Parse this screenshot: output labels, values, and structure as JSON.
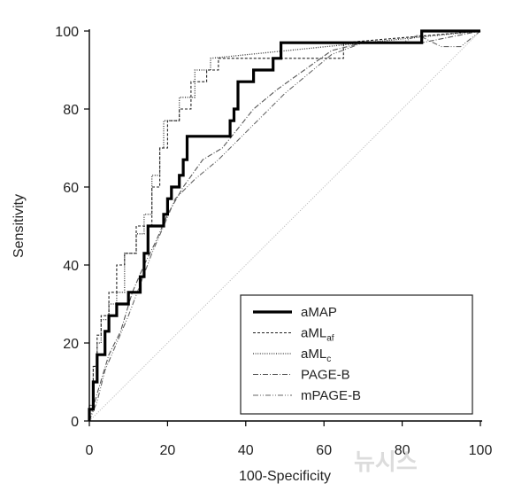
{
  "chart_data": {
    "type": "line",
    "xlabel": "100-Specificity",
    "ylabel": "Sensitivity",
    "xlim": [
      0,
      100
    ],
    "ylim": [
      0,
      100
    ],
    "xticks": [
      0,
      20,
      40,
      60,
      80,
      100
    ],
    "yticks": [
      0,
      20,
      40,
      60,
      80,
      100
    ],
    "grid": false,
    "legend_position": "bottom-right",
    "reference_line": [
      [
        0,
        0
      ],
      [
        100,
        100
      ]
    ],
    "series": [
      {
        "name": "aMAP",
        "name_main": "aMAP",
        "name_sub": "",
        "style": "solid-thick",
        "color": "#000000",
        "points": [
          [
            0,
            0
          ],
          [
            0,
            3
          ],
          [
            1,
            3
          ],
          [
            1,
            10
          ],
          [
            2,
            10
          ],
          [
            2,
            17
          ],
          [
            4,
            17
          ],
          [
            4,
            23
          ],
          [
            5,
            23
          ],
          [
            5,
            27
          ],
          [
            7,
            27
          ],
          [
            7,
            30
          ],
          [
            10,
            30
          ],
          [
            10,
            33
          ],
          [
            13,
            33
          ],
          [
            13,
            37
          ],
          [
            14,
            37
          ],
          [
            14,
            43
          ],
          [
            15,
            43
          ],
          [
            15,
            50
          ],
          [
            19,
            50
          ],
          [
            19,
            53
          ],
          [
            20,
            53
          ],
          [
            20,
            57
          ],
          [
            21,
            57
          ],
          [
            21,
            60
          ],
          [
            23,
            60
          ],
          [
            23,
            63
          ],
          [
            24,
            63
          ],
          [
            24,
            67
          ],
          [
            25,
            67
          ],
          [
            25,
            73
          ],
          [
            36,
            73
          ],
          [
            36,
            77
          ],
          [
            37,
            77
          ],
          [
            37,
            80
          ],
          [
            38,
            80
          ],
          [
            38,
            87
          ],
          [
            42,
            87
          ],
          [
            42,
            90
          ],
          [
            47,
            90
          ],
          [
            47,
            93
          ],
          [
            49,
            93
          ],
          [
            49,
            97
          ],
          [
            85,
            97
          ],
          [
            85,
            100
          ],
          [
            100,
            100
          ]
        ]
      },
      {
        "name": "aMLaf",
        "name_main": "aML",
        "name_sub": "af",
        "style": "dashed",
        "color": "#222222",
        "points": [
          [
            0,
            0
          ],
          [
            0,
            4
          ],
          [
            1,
            4
          ],
          [
            1,
            14
          ],
          [
            2,
            14
          ],
          [
            2,
            22
          ],
          [
            3,
            22
          ],
          [
            3,
            27
          ],
          [
            5,
            27
          ],
          [
            5,
            33
          ],
          [
            7,
            33
          ],
          [
            7,
            40
          ],
          [
            9,
            40
          ],
          [
            9,
            43
          ],
          [
            12,
            43
          ],
          [
            12,
            50
          ],
          [
            16,
            50
          ],
          [
            16,
            60
          ],
          [
            18,
            60
          ],
          [
            18,
            70
          ],
          [
            20,
            70
          ],
          [
            20,
            77
          ],
          [
            23,
            77
          ],
          [
            23,
            80
          ],
          [
            26,
            80
          ],
          [
            26,
            87
          ],
          [
            30,
            87
          ],
          [
            30,
            90
          ],
          [
            33,
            90
          ],
          [
            33,
            93
          ],
          [
            65,
            93
          ],
          [
            65,
            97
          ],
          [
            100,
            100
          ]
        ]
      },
      {
        "name": "aMLc",
        "name_main": "aML",
        "name_sub": "c",
        "style": "dotted",
        "color": "#333333",
        "points": [
          [
            0,
            0
          ],
          [
            0,
            4
          ],
          [
            1,
            4
          ],
          [
            1,
            14
          ],
          [
            2,
            14
          ],
          [
            2,
            20
          ],
          [
            3,
            20
          ],
          [
            3,
            26
          ],
          [
            5,
            26
          ],
          [
            5,
            30
          ],
          [
            7,
            30
          ],
          [
            7,
            33
          ],
          [
            9,
            33
          ],
          [
            9,
            43
          ],
          [
            12,
            43
          ],
          [
            12,
            48
          ],
          [
            14,
            48
          ],
          [
            14,
            53
          ],
          [
            16,
            53
          ],
          [
            16,
            63
          ],
          [
            18,
            63
          ],
          [
            18,
            70
          ],
          [
            19,
            70
          ],
          [
            19,
            77
          ],
          [
            23,
            77
          ],
          [
            23,
            83
          ],
          [
            27,
            83
          ],
          [
            27,
            90
          ],
          [
            31,
            90
          ],
          [
            31,
            93
          ],
          [
            100,
            100
          ]
        ]
      },
      {
        "name": "PAGE-B",
        "name_main": "PAGE-B",
        "name_sub": "",
        "style": "dashdot",
        "color": "#555555",
        "points": [
          [
            0,
            0
          ],
          [
            2,
            7
          ],
          [
            5,
            17
          ],
          [
            8,
            23
          ],
          [
            11,
            33
          ],
          [
            14,
            40
          ],
          [
            17,
            46
          ],
          [
            20,
            53
          ],
          [
            24,
            60
          ],
          [
            29,
            67
          ],
          [
            34,
            70
          ],
          [
            38,
            75
          ],
          [
            42,
            80
          ],
          [
            48,
            85
          ],
          [
            55,
            90
          ],
          [
            62,
            95
          ],
          [
            70,
            97
          ],
          [
            85,
            97
          ],
          [
            100,
            100
          ]
        ]
      },
      {
        "name": "mPAGE-B",
        "name_main": "mPAGE-B",
        "name_sub": "",
        "style": "dashdotdot",
        "color": "#666666",
        "points": [
          [
            0,
            0
          ],
          [
            2,
            5
          ],
          [
            4,
            13
          ],
          [
            7,
            20
          ],
          [
            10,
            27
          ],
          [
            13,
            35
          ],
          [
            16,
            43
          ],
          [
            19,
            50
          ],
          [
            22,
            57
          ],
          [
            27,
            62
          ],
          [
            33,
            67
          ],
          [
            38,
            72
          ],
          [
            44,
            78
          ],
          [
            50,
            84
          ],
          [
            56,
            89
          ],
          [
            62,
            94
          ],
          [
            70,
            97
          ],
          [
            80,
            97
          ],
          [
            84,
            99
          ],
          [
            90,
            96
          ],
          [
            95,
            96
          ],
          [
            100,
            100
          ]
        ]
      }
    ]
  }
}
